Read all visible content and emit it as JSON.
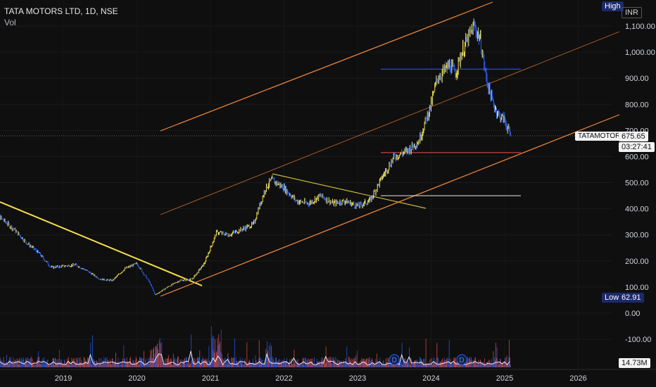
{
  "header": {
    "title": "TATA MOTORS LTD, 1D, NSE",
    "volume_label": "Vol"
  },
  "price_axis": {
    "currency": "INR",
    "high_label": "High",
    "low_label": "Low",
    "low_value": "62.91",
    "volume_value": "14.73M",
    "ticker": "TATAMOTORS",
    "last_price": "675.65",
    "countdown": "03:27:41",
    "labels": [
      "1,100.00",
      "1,000.00",
      "900.00",
      "800.00",
      "700.00",
      "600.00",
      "500.00",
      "400.00",
      "300.00",
      "200.00",
      "100.00",
      "0.00",
      "-100.00"
    ]
  },
  "time_axis": {
    "labels": [
      "2019",
      "2020",
      "2021",
      "2022",
      "2023",
      "2024",
      "2025",
      "2026"
    ]
  },
  "dividend_marker": "D",
  "colors": {
    "up": "#f5e04b",
    "down": "#2962ff",
    "background": "#0f0f0f",
    "channel": "#f0873a",
    "trend": "#f5e04b",
    "vol_up": "#2962ff",
    "vol_down": "#ef5350"
  },
  "chart_data": {
    "type": "line",
    "symbol": "TATAMOTORS",
    "exchange": "NSE",
    "interval": "1D",
    "x_range": [
      "2018-01",
      "2026-06"
    ],
    "y_range": [
      -150,
      1150
    ],
    "price_series": {
      "x": [
        "2018-01",
        "2018-03",
        "2018-05",
        "2018-07",
        "2018-09",
        "2018-11",
        "2019-01",
        "2019-03",
        "2019-05",
        "2019-07",
        "2019-09",
        "2019-11",
        "2020-01",
        "2020-03",
        "2020-04",
        "2020-06",
        "2020-08",
        "2020-10",
        "2020-12",
        "2021-02",
        "2021-04",
        "2021-06",
        "2021-08",
        "2021-10",
        "2021-11",
        "2022-01",
        "2022-03",
        "2022-05",
        "2022-07",
        "2022-09",
        "2022-11",
        "2023-01",
        "2023-03",
        "2023-05",
        "2023-07",
        "2023-09",
        "2023-11",
        "2024-01",
        "2024-02",
        "2024-04",
        "2024-05",
        "2024-06",
        "2024-07",
        "2024-08",
        "2024-09",
        "2024-10",
        "2024-11",
        "2024-12",
        "2025-01",
        "2025-02"
      ],
      "y": [
        400,
        360,
        320,
        270,
        230,
        175,
        180,
        185,
        160,
        130,
        125,
        170,
        190,
        120,
        70,
        100,
        125,
        130,
        190,
        310,
        300,
        320,
        340,
        480,
        510,
        480,
        430,
        420,
        450,
        420,
        430,
        410,
        430,
        520,
        600,
        620,
        660,
        800,
        900,
        950,
        920,
        1000,
        1050,
        1100,
        1050,
        900,
        810,
        760,
        740,
        675
      ]
    },
    "horizontal_levels": [
      935,
      615,
      450
    ],
    "volume_price_line": 0,
    "dividends": [
      "2023-07",
      "2024-06"
    ]
  }
}
